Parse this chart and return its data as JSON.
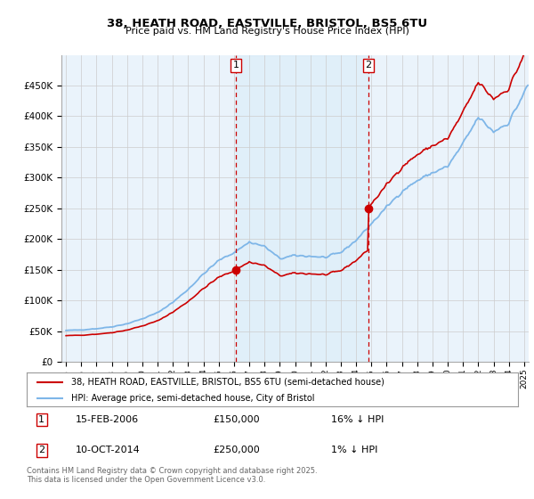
{
  "title": "38, HEATH ROAD, EASTVILLE, BRISTOL, BS5 6TU",
  "subtitle": "Price paid vs. HM Land Registry's House Price Index (HPI)",
  "legend_line1": "38, HEATH ROAD, EASTVILLE, BRISTOL, BS5 6TU (semi-detached house)",
  "legend_line2": "HPI: Average price, semi-detached house, City of Bristol",
  "sale1_date": "15-FEB-2006",
  "sale1_price": 150000,
  "sale1_label": "16% ↓ HPI",
  "sale1_year": 2006.12,
  "sale2_date": "10-OCT-2014",
  "sale2_price": 250000,
  "sale2_label": "1% ↓ HPI",
  "sale2_year": 2014.79,
  "footer": "Contains HM Land Registry data © Crown copyright and database right 2025.\nThis data is licensed under the Open Government Licence v3.0.",
  "hpi_color": "#7EB6E8",
  "sale_color": "#CC0000",
  "vline_color": "#CC0000",
  "background_color": "#EAF3FB",
  "shade_color": "#D0E8F8",
  "ylim": [
    0,
    500000
  ],
  "xlim_start": 1994.7,
  "xlim_end": 2025.3
}
